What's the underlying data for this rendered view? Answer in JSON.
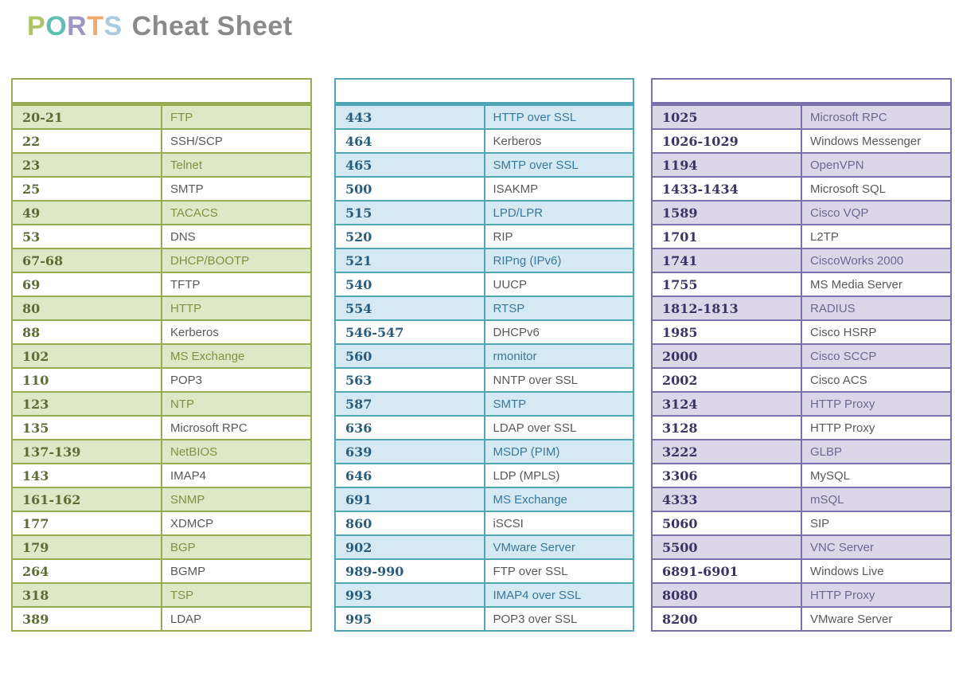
{
  "title": {
    "letters": [
      {
        "char": "P",
        "color": "#afc468"
      },
      {
        "char": "O",
        "color": "#5fbfb4"
      },
      {
        "char": "R",
        "color": "#9e94c6"
      },
      {
        "char": "T",
        "color": "#f2a96b"
      },
      {
        "char": "S",
        "color": "#a9cbdf"
      }
    ],
    "rest": " Cheat Sheet",
    "rest_color": "#8a8a8a"
  },
  "tables": [
    {
      "name": "well-known-ports-table",
      "theme": {
        "border": "#97ac52",
        "row_bg": "#dde8c7",
        "port_color": "#5d6b35",
        "accent_text": "#7a9440",
        "plain_text": "#595959"
      },
      "header": "",
      "rows": [
        {
          "port": "20-21",
          "service": "FTP"
        },
        {
          "port": "22",
          "service": "SSH/SCP"
        },
        {
          "port": "23",
          "service": "Telnet"
        },
        {
          "port": "25",
          "service": "SMTP"
        },
        {
          "port": "49",
          "service": "TACACS"
        },
        {
          "port": "53",
          "service": "DNS"
        },
        {
          "port": "67-68",
          "service": "DHCP/BOOTP"
        },
        {
          "port": "69",
          "service": "TFTP"
        },
        {
          "port": "80",
          "service": "HTTP"
        },
        {
          "port": "88",
          "service": "Kerberos"
        },
        {
          "port": "102",
          "service": "MS Exchange"
        },
        {
          "port": "110",
          "service": "POP3"
        },
        {
          "port": "123",
          "service": "NTP"
        },
        {
          "port": "135",
          "service": "Microsoft RPC"
        },
        {
          "port": "137-139",
          "service": "NetBIOS"
        },
        {
          "port": "143",
          "service": "IMAP4"
        },
        {
          "port": "161-162",
          "service": "SNMP"
        },
        {
          "port": "177",
          "service": "XDMCP"
        },
        {
          "port": "179",
          "service": "BGP"
        },
        {
          "port": "264",
          "service": "BGMP"
        },
        {
          "port": "318",
          "service": "TSP"
        },
        {
          "port": "389",
          "service": "LDAP"
        }
      ]
    },
    {
      "name": "mid-range-ports-table",
      "theme": {
        "border": "#4fa7b5",
        "row_bg": "#d4e9f2",
        "port_color": "#2a5d7c",
        "accent_text": "#39789b",
        "plain_text": "#595959"
      },
      "header": "",
      "rows": [
        {
          "port": "443",
          "service": "HTTP over SSL"
        },
        {
          "port": "464",
          "service": "Kerberos"
        },
        {
          "port": "465",
          "service": "SMTP over SSL"
        },
        {
          "port": "500",
          "service": "ISAKMP"
        },
        {
          "port": "515",
          "service": "LPD/LPR"
        },
        {
          "port": "520",
          "service": "RIP"
        },
        {
          "port": "521",
          "service": "RIPng (IPv6)"
        },
        {
          "port": "540",
          "service": "UUCP"
        },
        {
          "port": "554",
          "service": "RTSP"
        },
        {
          "port": "546-547",
          "service": "DHCPv6"
        },
        {
          "port": "560",
          "service": "rmonitor"
        },
        {
          "port": "563",
          "service": "NNTP over SSL"
        },
        {
          "port": "587",
          "service": "SMTP"
        },
        {
          "port": "636",
          "service": "LDAP over SSL"
        },
        {
          "port": "639",
          "service": "MSDP (PIM)"
        },
        {
          "port": "646",
          "service": "LDP (MPLS)"
        },
        {
          "port": "691",
          "service": "MS Exchange"
        },
        {
          "port": "860",
          "service": "iSCSI"
        },
        {
          "port": "902",
          "service": "VMware Server"
        },
        {
          "port": "989-990",
          "service": "FTP over SSL"
        },
        {
          "port": "993",
          "service": "IMAP4 over SSL"
        },
        {
          "port": "995",
          "service": "POP3 over SSL"
        }
      ]
    },
    {
      "name": "high-range-ports-table",
      "theme": {
        "border": "#7a71ac",
        "row_bg": "#dbd7e8",
        "port_color": "#393463",
        "accent_text": "#6e6791",
        "plain_text": "#595959"
      },
      "header": "",
      "rows": [
        {
          "port": "1025",
          "service": "Microsoft RPC"
        },
        {
          "port": "1026-1029",
          "service": "Windows Messenger"
        },
        {
          "port": "1194",
          "service": "OpenVPN"
        },
        {
          "port": "1433-1434",
          "service": "Microsoft SQL"
        },
        {
          "port": "1589",
          "service": "Cisco VQP"
        },
        {
          "port": "1701",
          "service": "L2TP"
        },
        {
          "port": "1741",
          "service": "CiscoWorks 2000"
        },
        {
          "port": "1755",
          "service": "MS Media Server"
        },
        {
          "port": "1812-1813",
          "service": "RADIUS"
        },
        {
          "port": "1985",
          "service": "Cisco HSRP"
        },
        {
          "port": "2000",
          "service": "Cisco SCCP"
        },
        {
          "port": "2002",
          "service": "Cisco ACS"
        },
        {
          "port": "3124",
          "service": "HTTP Proxy"
        },
        {
          "port": "3128",
          "service": "HTTP Proxy"
        },
        {
          "port": "3222",
          "service": "GLBP"
        },
        {
          "port": "3306",
          "service": "MySQL"
        },
        {
          "port": "4333",
          "service": "mSQL"
        },
        {
          "port": "5060",
          "service": "SIP"
        },
        {
          "port": "5500",
          "service": "VNC Server"
        },
        {
          "port": "6891-6901",
          "service": "Windows Live"
        },
        {
          "port": "8080",
          "service": "HTTP Proxy"
        },
        {
          "port": "8200",
          "service": "VMware Server"
        }
      ]
    }
  ]
}
